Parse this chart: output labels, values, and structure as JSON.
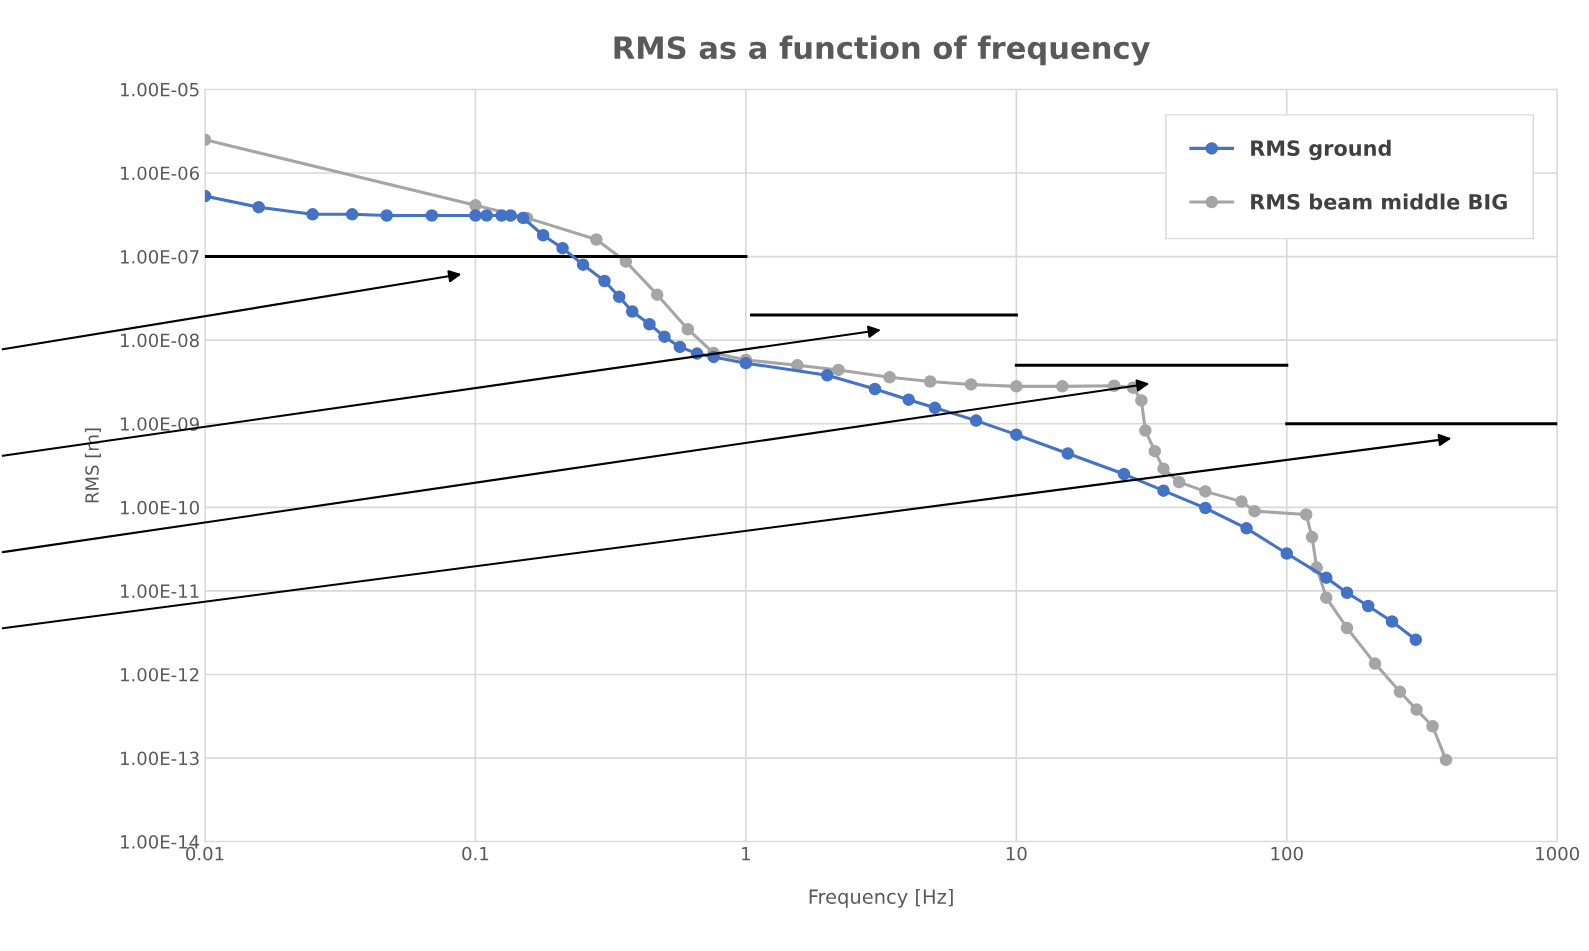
{
  "chart_data": {
    "type": "line",
    "title": "RMS as a function of frequency",
    "xlabel": "Frequency [Hz]",
    "ylabel": "RMS [m]",
    "log": "xy",
    "grid": true,
    "legend": "top right",
    "marker": "circle",
    "xlim": [
      0.01,
      1000
    ],
    "xticks": [
      0.01,
      0.1,
      1,
      10,
      100,
      1000
    ],
    "ylim": [
      1e-14,
      1e-05
    ],
    "yticks": [
      {
        "value": 1e-14,
        "label": "1.00E-14"
      },
      {
        "value": 1e-13,
        "label": "1.00E-13"
      },
      {
        "value": 1e-12,
        "label": "1.00E-12"
      },
      {
        "value": 1e-11,
        "label": "1.00E-11"
      },
      {
        "value": 1e-10,
        "label": "1.00E-10"
      },
      {
        "value": 1e-09,
        "label": "1.00E-09"
      },
      {
        "value": 1e-08,
        "label": "1.00E-08"
      },
      {
        "value": 1e-07,
        "label": "1.00E-07"
      },
      {
        "value": 1e-06,
        "label": "1.00E-06"
      },
      {
        "value": 1e-05,
        "label": "1.00E-05"
      }
    ],
    "series": [
      {
        "name": "RMS ground",
        "color": "#4472c4",
        "x": [
          0.01,
          0.0158,
          0.025,
          0.035,
          0.047,
          0.069,
          0.1,
          0.11,
          0.125,
          0.135,
          0.15,
          0.178,
          0.21,
          0.25,
          0.3,
          0.34,
          0.38,
          0.44,
          0.5,
          0.57,
          0.66,
          0.76,
          1,
          2,
          3,
          4,
          5,
          7.1,
          10,
          15.5,
          25,
          35,
          50,
          71,
          100,
          140,
          167,
          200,
          245,
          300
        ],
        "values": [
          5.3e-07,
          3.9e-07,
          3.2e-07,
          3.2e-07,
          3.1e-07,
          3.1e-07,
          3.1e-07,
          3.1e-07,
          3.1e-07,
          3.1e-07,
          2.9e-07,
          1.8e-07,
          1.26e-07,
          8e-08,
          5.1e-08,
          3.3e-08,
          2.2e-08,
          1.55e-08,
          1.1e-08,
          8.3e-09,
          6.9e-09,
          6.3e-09,
          5.3e-09,
          3.8e-09,
          2.6e-09,
          1.94e-09,
          1.55e-09,
          1.09e-09,
          7.4e-10,
          4.4e-10,
          2.5e-10,
          1.58e-10,
          9.8e-11,
          5.6e-11,
          2.8e-11,
          1.44e-11,
          9.5e-12,
          6.6e-12,
          4.3e-12,
          2.6e-12
        ]
      },
      {
        "name": "RMS beam middle BIG",
        "color": "#a5a5a5",
        "x": [
          0.01,
          0.1,
          0.155,
          0.28,
          0.36,
          0.47,
          0.61,
          0.76,
          1,
          1.55,
          2.2,
          3.4,
          4.8,
          6.8,
          10,
          14.8,
          23,
          27,
          29,
          30,
          32.5,
          35,
          40,
          50,
          68,
          76,
          118,
          124,
          129,
          140,
          167,
          212,
          262,
          302,
          346,
          388
        ],
        "values": [
          2.5e-06,
          4.1e-07,
          2.9e-07,
          1.6e-07,
          8.7e-08,
          3.5e-08,
          1.35e-08,
          7e-09,
          5.8e-09,
          5e-09,
          4.4e-09,
          3.6e-09,
          3.2e-09,
          2.95e-09,
          2.8e-09,
          2.8e-09,
          2.85e-09,
          2.7e-09,
          1.9e-09,
          8.3e-10,
          4.7e-10,
          2.9e-10,
          2e-10,
          1.55e-10,
          1.17e-10,
          9e-11,
          8.2e-11,
          4.4e-11,
          1.9e-11,
          8.3e-12,
          3.6e-12,
          1.35e-12,
          6.2e-13,
          3.8e-13,
          2.4e-13,
          9.5e-14
        ]
      },
      {
        "type": "line",
        "marker": "none",
        "color": "#000000",
        "x": [
          0.01,
          1
        ],
        "values": [
          1e-07,
          1e-07
        ]
      },
      {
        "type": "line",
        "marker": "none",
        "color": "#000000",
        "x": [
          1.05,
          10
        ],
        "values": [
          2e-08,
          2e-08
        ]
      },
      {
        "type": "line",
        "marker": "none",
        "color": "#000000",
        "x": [
          10,
          100
        ],
        "values": [
          5e-09,
          5e-09
        ]
      },
      {
        "type": "line",
        "marker": "none",
        "color": "#000000",
        "x": [
          100,
          1000
        ],
        "values": [
          1e-09,
          1e-09
        ]
      }
    ]
  }
}
